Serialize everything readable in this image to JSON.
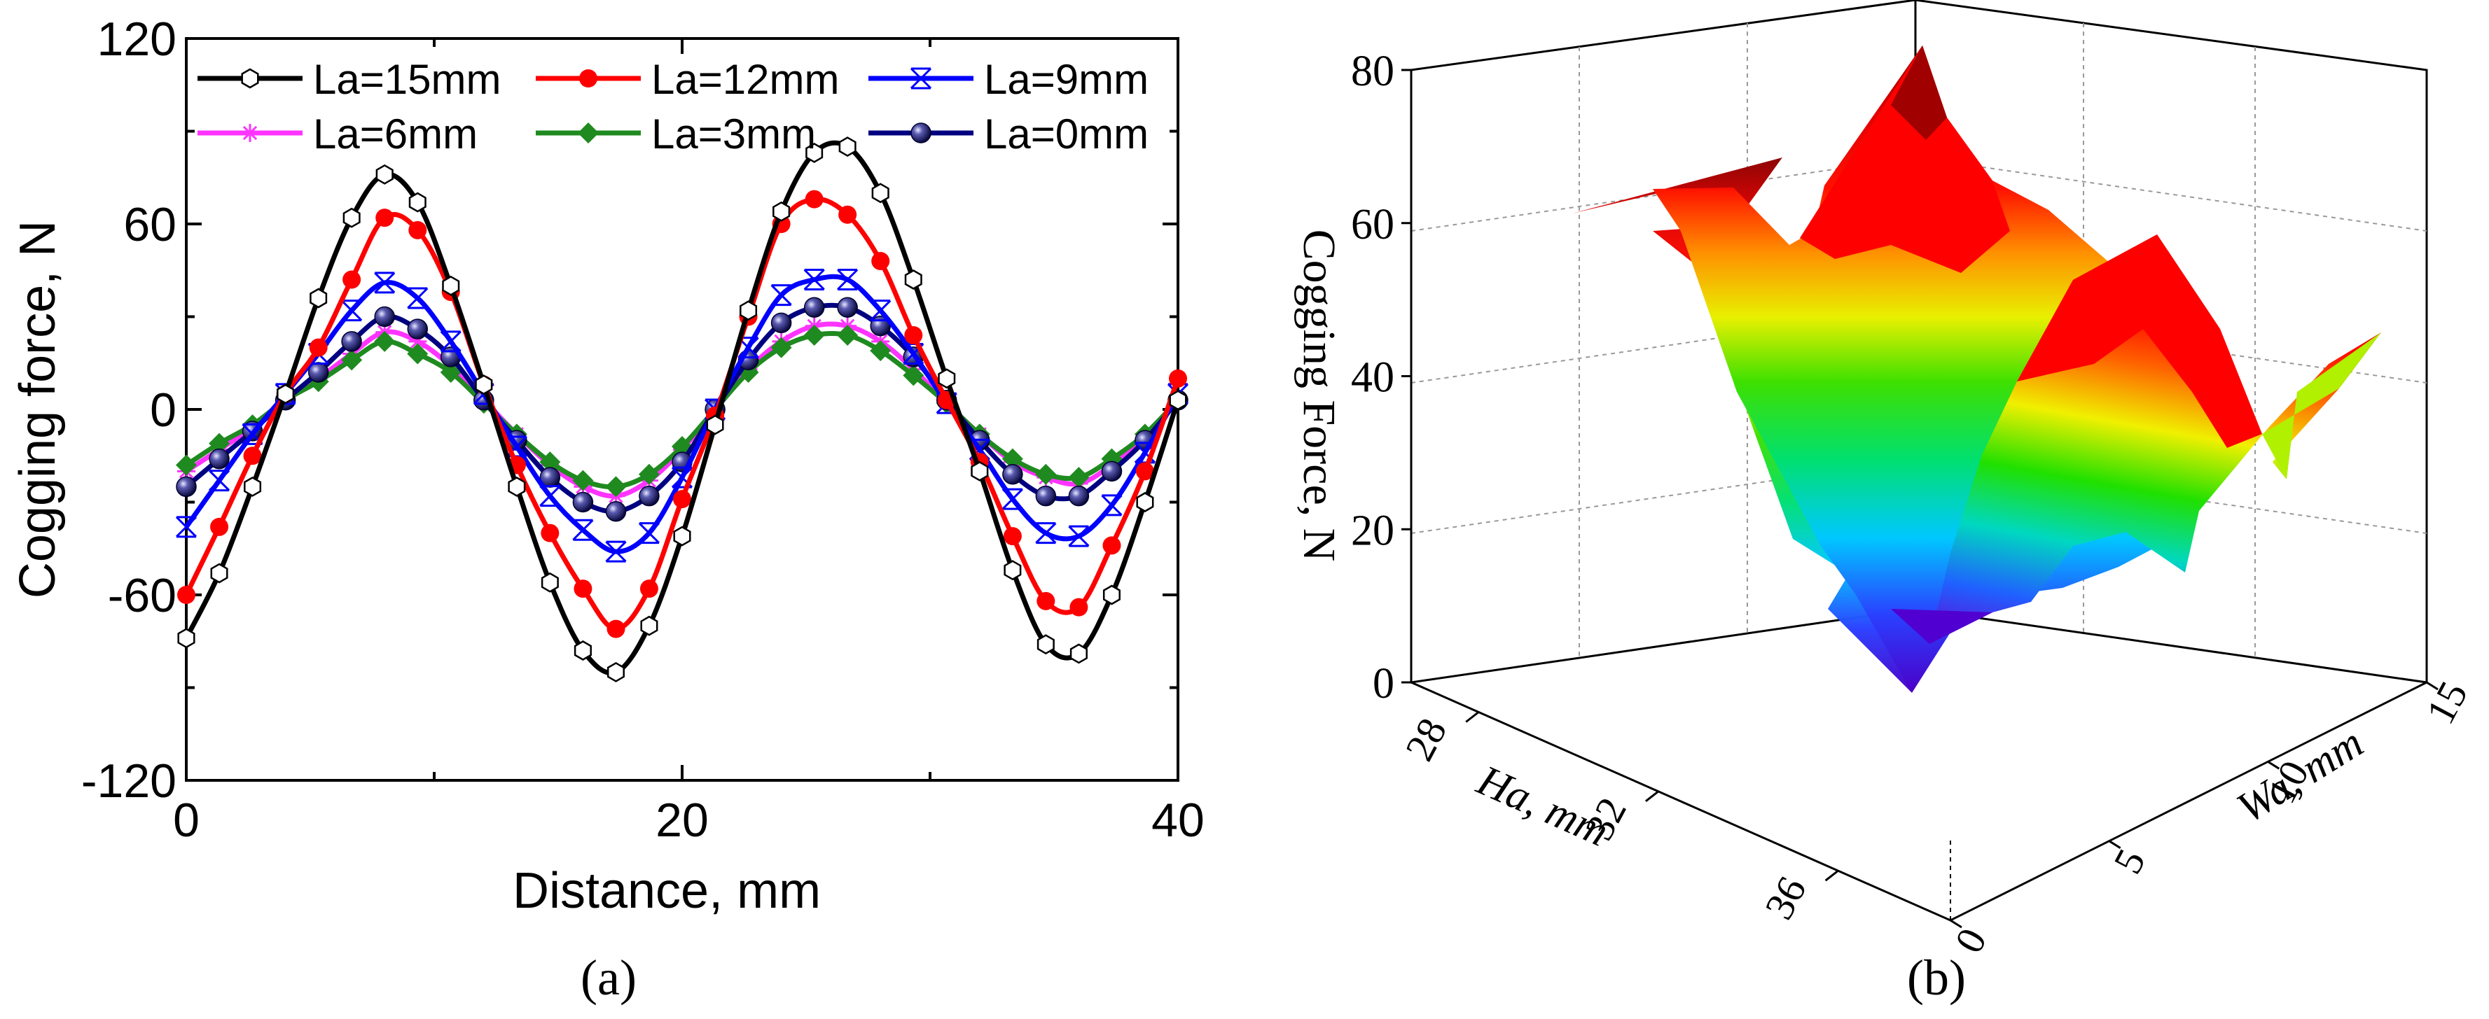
{
  "figure_labels": {
    "a": "(a)",
    "b": "(b)"
  },
  "colors": {
    "la15": "#000000",
    "la12": "#ff0000",
    "la9": "#0000ff",
    "la6": "#ff33ff",
    "la3": "#1f8a1f",
    "la0": "#000080"
  },
  "chart_data": [
    {
      "type": "line",
      "xlabel": "Distance, mm",
      "ylabel": "Cogging force, N",
      "xlim": [
        0,
        40
      ],
      "ylim": [
        -120,
        120
      ],
      "xticks": [
        "0",
        "20",
        "40"
      ],
      "yticks": [
        "-120",
        "-60",
        "0",
        "60",
        "120"
      ],
      "x": [
        0,
        1.33,
        2.67,
        4,
        5.33,
        6.67,
        8,
        9.33,
        10.67,
        12,
        13.33,
        14.67,
        16,
        17.33,
        18.67,
        20,
        21.33,
        22.67,
        24,
        25.33,
        26.67,
        28,
        29.33,
        30.67,
        32,
        33.33,
        34.67,
        36,
        37.33,
        38.67,
        40
      ],
      "series": [
        {
          "name": "La=15mm",
          "color_key": "la15",
          "marker": "hexagon-open",
          "values": [
            -74,
            -53,
            -25,
            5,
            36,
            62,
            76,
            67,
            40,
            8,
            -25,
            -56,
            -78,
            -85,
            -70,
            -41,
            -5,
            32,
            64,
            83,
            85,
            70,
            42,
            10,
            -20,
            -52,
            -76,
            -79,
            -60,
            -30,
            3
          ]
        },
        {
          "name": "La=12mm",
          "color_key": "la12",
          "marker": "dot",
          "values": [
            -60,
            -38,
            -15,
            5,
            20,
            42,
            62,
            58,
            38,
            8,
            -18,
            -40,
            -58,
            -71,
            -58,
            -29,
            -2,
            30,
            60,
            68,
            63,
            48,
            24,
            3,
            -17,
            -41,
            -62,
            -64,
            -44,
            -20,
            10
          ]
        },
        {
          "name": "La=9mm",
          "color_key": "la9",
          "marker": "x",
          "values": [
            -38,
            -23,
            -8,
            5,
            18,
            32,
            41,
            36,
            22,
            5,
            -12,
            -28,
            -39,
            -46,
            -40,
            -22,
            0,
            20,
            37,
            42,
            42,
            32,
            18,
            2,
            -13,
            -29,
            -40,
            -41,
            -31,
            -14,
            5
          ]
        },
        {
          "name": "La=6mm",
          "color_key": "la6",
          "marker": "asterisk",
          "values": [
            -20,
            -13,
            -6,
            3,
            10,
            18,
            25,
            22,
            14,
            3,
            -8,
            -18,
            -25,
            -28,
            -23,
            -13,
            0,
            13,
            22,
            27,
            27,
            22,
            13,
            2,
            -8,
            -17,
            -22,
            -24,
            -18,
            -9,
            3
          ]
        },
        {
          "name": "La=3mm",
          "color_key": "la3",
          "marker": "diamond",
          "values": [
            -18,
            -11,
            -5,
            3,
            9,
            16,
            22,
            18,
            12,
            2,
            -8,
            -17,
            -23,
            -25,
            -21,
            -12,
            0,
            12,
            20,
            24,
            24,
            19,
            11,
            2,
            -8,
            -16,
            -21,
            -22,
            -16,
            -8,
            3
          ]
        },
        {
          "name": "La=0mm",
          "color_key": "la0",
          "marker": "ball",
          "values": [
            -25,
            -16,
            -7,
            3,
            12,
            22,
            30,
            26,
            17,
            3,
            -10,
            -22,
            -30,
            -33,
            -28,
            -17,
            0,
            16,
            28,
            33,
            33,
            27,
            17,
            3,
            -10,
            -21,
            -28,
            -28,
            -20,
            -10,
            3
          ]
        }
      ]
    },
    {
      "type": "surface3d",
      "title": "",
      "zlabel": "Cogging Force, N",
      "xlabel": "Ha, mm",
      "ylabel": "Wa, mm",
      "zticks": [
        "0",
        "20",
        "40",
        "60",
        "80"
      ],
      "xticks": [
        "28",
        "32",
        "36"
      ],
      "yticks": [
        "0",
        "5",
        "10",
        "15"
      ],
      "zlim": [
        0,
        80
      ]
    }
  ]
}
